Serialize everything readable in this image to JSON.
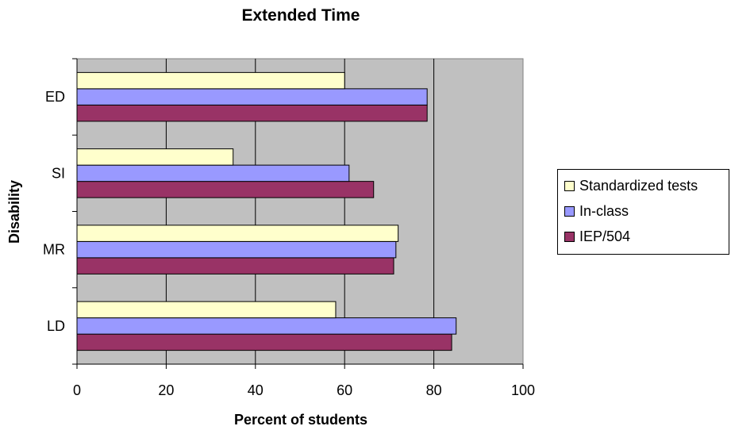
{
  "chart_data": {
    "type": "bar",
    "orientation": "horizontal",
    "title": "Extended Time",
    "xlabel": "Percent of students",
    "ylabel": "Disability",
    "xlim": [
      0,
      100
    ],
    "x_ticks": [
      "0",
      "20",
      "40",
      "60",
      "80",
      "100"
    ],
    "categories": [
      "LD",
      "MR",
      "SI",
      "ED"
    ],
    "series": [
      {
        "name": "IEP/504",
        "color": "#993366",
        "values": [
          84,
          71,
          66.5,
          78.5
        ]
      },
      {
        "name": "In-class",
        "color": "#9999FF",
        "values": [
          85,
          71.5,
          61,
          78.5
        ]
      },
      {
        "name": "Standardized tests",
        "color": "#FFFFCC",
        "values": [
          58,
          72,
          35,
          60
        ]
      }
    ],
    "legend_order": [
      "Standardized tests",
      "In-class",
      "IEP/504"
    ],
    "plot_background": "#C0C0C0",
    "grid": "vertical major",
    "legend_position": "right"
  }
}
